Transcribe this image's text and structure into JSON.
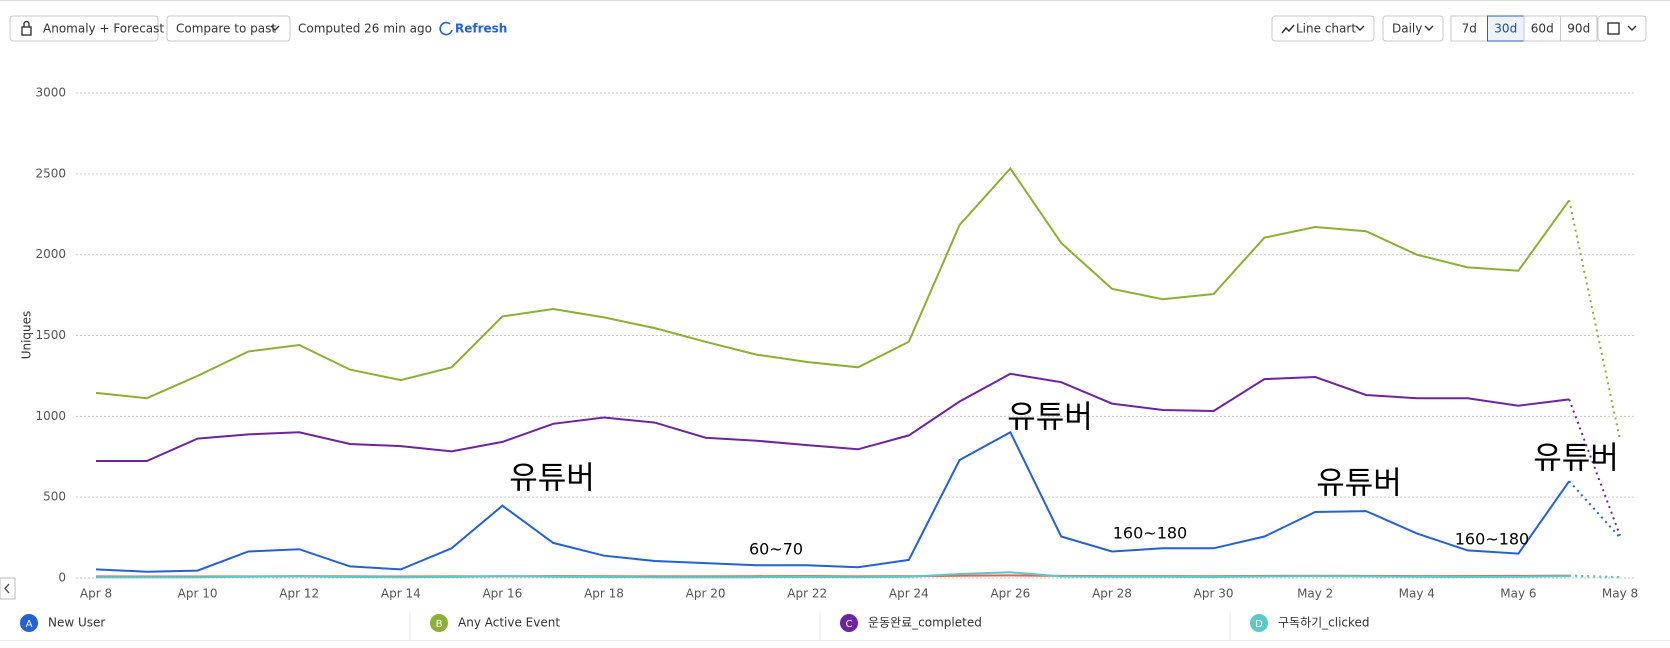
{
  "toolbar": {
    "mode": "Anomaly + Forecast",
    "compare": "Compare to past",
    "computed": "Computed 26 min ago",
    "refresh": "Refresh",
    "chart_type": "Line chart",
    "interval": "Daily",
    "ranges": [
      "7d",
      "30d",
      "60d",
      "90d"
    ],
    "selected_range": "30d"
  },
  "chart_data": {
    "type": "line",
    "ylabel": "Uniques",
    "categories": [
      "Apr 8",
      null,
      "Apr 10",
      null,
      "Apr 12",
      null,
      "Apr 14",
      null,
      "Apr 16",
      null,
      "Apr 18",
      null,
      "Apr 20",
      null,
      "Apr 22",
      null,
      "Apr 24",
      null,
      "Apr 26",
      null,
      "Apr 28",
      null,
      "Apr 30",
      null,
      "May 2",
      null,
      "May 4",
      null,
      "May 6",
      null,
      "May 8"
    ],
    "ylim": [
      0,
      3000
    ],
    "yticks": [
      0,
      500,
      1000,
      1500,
      2000,
      2500,
      3000
    ],
    "grid": true,
    "series": [
      {
        "letter": "B",
        "name": "Any Active Event",
        "color": "#8bb033",
        "values": [
          1145,
          1112,
          1250,
          1401,
          1441,
          1289,
          1224,
          1303,
          1618,
          1664,
          1612,
          1546,
          1461,
          1382,
          1336,
          1303,
          1461,
          2184,
          2533,
          2072,
          1789,
          1724,
          1757,
          2105,
          2171,
          2145,
          2000,
          1921,
          1901,
          2336,
          855
        ]
      },
      {
        "letter": "C",
        "name": "운동완료_completed",
        "color": "#6e23a0",
        "values": [
          724,
          724,
          862,
          888,
          901,
          829,
          816,
          783,
          842,
          954,
          993,
          961,
          868,
          849,
          822,
          796,
          882,
          1092,
          1263,
          1211,
          1079,
          1039,
          1033,
          1230,
          1243,
          1132,
          1112,
          1112,
          1066,
          1105,
          263
        ]
      },
      {
        "letter": "A",
        "name": "New User",
        "color": "#2460d6",
        "values": [
          53,
          39,
          46,
          164,
          178,
          72,
          53,
          184,
          447,
          217,
          138,
          105,
          92,
          79,
          79,
          66,
          112,
          730,
          901,
          257,
          164,
          184,
          184,
          257,
          408,
          414,
          276,
          171,
          151,
          599,
          250
        ]
      },
      {
        "letter": "D",
        "name": "구독하기_clicked",
        "color": "#5cc8c8",
        "values": [
          5,
          5,
          5,
          8,
          10,
          6,
          5,
          6,
          12,
          8,
          6,
          5,
          5,
          5,
          6,
          5,
          8,
          25,
          35,
          10,
          8,
          8,
          6,
          10,
          12,
          10,
          8,
          6,
          8,
          12,
          5
        ]
      },
      {
        "color": "#e8604c",
        "values": [
          10,
          9,
          9,
          10,
          12,
          10,
          9,
          10,
          11,
          12,
          11,
          10,
          10,
          11,
          12,
          10,
          11,
          14,
          16,
          13,
          12,
          12,
          11,
          13,
          14,
          13,
          12,
          12,
          13,
          15,
          5
        ]
      }
    ],
    "annotations": [
      "유튜버",
      "유튜버",
      "유튜버",
      "유튜버",
      "60~70",
      "160~180",
      "160~180"
    ]
  }
}
